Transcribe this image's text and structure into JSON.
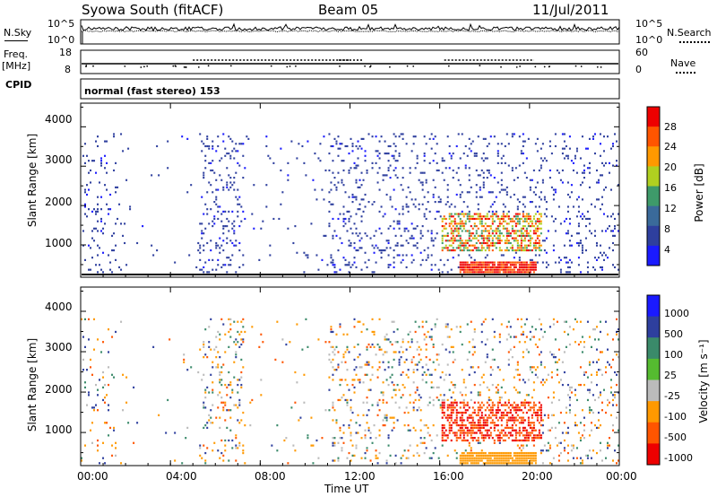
{
  "header": {
    "station": "Syowa South (fitACF)",
    "beam": "Beam 05",
    "date": "11/Jul/2011"
  },
  "sky_panel": {
    "left_label": "N.Sky",
    "right_label": "N.Search",
    "left_ticks": [
      "10^5",
      "10^0"
    ],
    "right_ticks": [
      "10^5",
      "10^0"
    ]
  },
  "freq_panel": {
    "left_label_1": "Freq.",
    "left_label_2": "[MHz]",
    "right_label": "Nave",
    "left_ticks": [
      "18",
      "8"
    ],
    "right_ticks": [
      "60",
      "0"
    ]
  },
  "cpid": {
    "label": "CPID",
    "mode_text": "normal (fast stereo) 153"
  },
  "colors": {
    "power": [
      "#1a1aff",
      "#2e3f9e",
      "#3a6a9a",
      "#3e9a6a",
      "#b0d020",
      "#ff9900",
      "#ff5500",
      "#ee0000"
    ],
    "velocity": [
      "#ee0000",
      "#ff5500",
      "#ff9900",
      "#bbbbbb",
      "#55bb30",
      "#3a8a6a",
      "#2e3f9e",
      "#1a1aff"
    ]
  },
  "chart_data": [
    {
      "type": "heatmap",
      "quantity": "power",
      "ylabel": "Slant Range [km]",
      "ylim": [
        180,
        4600
      ],
      "yticks": [
        "1000",
        "2000",
        "3000",
        "4000"
      ],
      "xticks": [
        "00:00",
        "04:00",
        "08:00",
        "12:00",
        "16:00",
        "20:00",
        "00:00"
      ],
      "xlim_hours": [
        0,
        24
      ],
      "colorbar": {
        "label": "Power [dB]",
        "ticks": [
          "4",
          "8",
          "12",
          "16",
          "20",
          "24",
          "28"
        ],
        "range": [
          0,
          32
        ]
      }
    },
    {
      "type": "heatmap",
      "quantity": "velocity",
      "ylabel": "Slant Range [km]",
      "ylim": [
        180,
        4600
      ],
      "yticks": [
        "1000",
        "2000",
        "3000",
        "4000"
      ],
      "xticks": [
        "00:00",
        "04:00",
        "08:00",
        "12:00",
        "16:00",
        "20:00",
        "00:00"
      ],
      "xlabel": "Time UT",
      "xlim_hours": [
        0,
        24
      ],
      "colorbar": {
        "label": "Velocity [m s⁻¹]",
        "ticks": [
          "1000",
          "500",
          "100",
          "25",
          "-25",
          "-100",
          "-500",
          "-1000"
        ]
      }
    }
  ]
}
